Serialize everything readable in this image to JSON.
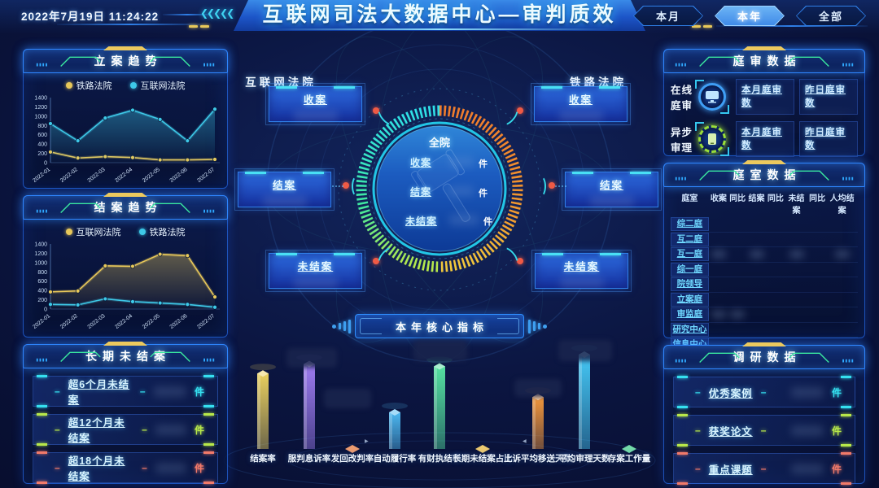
{
  "header": {
    "datetime": "2022年7月19日  11:24:22",
    "title": "互联网司法大数据中心—审判质效",
    "decor_left": "❮❮❮❮❮",
    "decor_right": "❯❯❯❯❯",
    "range_buttons": [
      {
        "label": "本月",
        "active": false
      },
      {
        "label": "本年",
        "active": true
      },
      {
        "label": "全部",
        "active": false
      }
    ]
  },
  "colors": {
    "accent_cyan": "#35e0f0",
    "accent_green": "#b8e84a",
    "accent_red": "#f27a6a",
    "accent_yellow": "#e8c85a",
    "accent_blue": "#2f8fe8",
    "active_button": "#4f9df0",
    "panel_border": "#2364dc",
    "ring_left": "#35e8c0",
    "ring_right": "#f08c30"
  },
  "left": {
    "long_pending": {
      "title": "长期未结案",
      "rows": [
        {
          "label": "超6个月未结案",
          "unit": "件",
          "color": "#35e0f0"
        },
        {
          "label": "超12个月未结案",
          "unit": "件",
          "color": "#b8e84a"
        },
        {
          "label": "超18个月未结案",
          "unit": "件",
          "color": "#f27a6a"
        }
      ]
    }
  },
  "center": {
    "internet_court_label": "互联网法院",
    "railway_court_label": "铁路法院",
    "internet_boxes": [
      {
        "label": "收案"
      },
      {
        "label": "结案"
      },
      {
        "label": "未结案"
      }
    ],
    "railway_boxes": [
      {
        "label": "收案"
      },
      {
        "label": "结案"
      },
      {
        "label": "未结案"
      }
    ],
    "gauge_title": "全院",
    "gauge_rows": [
      {
        "label": "收案",
        "unit": "件"
      },
      {
        "label": "结案",
        "unit": "件"
      },
      {
        "label": "未结案",
        "unit": "件"
      }
    ],
    "core_banner_label": "本年核心指标"
  },
  "right": {
    "hearing": {
      "title": "庭审数据",
      "rows": [
        {
          "label": "在线庭审",
          "icon": "monitor-icon",
          "color": "#3f9ef5",
          "links": [
            "本月庭审数",
            "昨日庭审数"
          ]
        },
        {
          "label": "异步审理",
          "icon": "tablet-icon",
          "color": "#9ade3a",
          "links": [
            "本月庭审数",
            "昨日庭审数"
          ]
        }
      ]
    },
    "dept": {
      "title": "庭室数据",
      "headers": [
        "庭室",
        "收案",
        "同比",
        "结案",
        "同比",
        "未结案",
        "同比",
        "人均结案"
      ],
      "rows": [
        "综二庭",
        "互二庭",
        "互一庭",
        "综一庭",
        "院领导",
        "立案庭",
        "审监庭",
        "研究中心",
        "信息中心"
      ]
    },
    "research": {
      "title": "调研数据",
      "rows": [
        {
          "label": "优秀案例",
          "unit": "件",
          "color": "#35e0f0"
        },
        {
          "label": "获奖论文",
          "unit": "件",
          "color": "#b8e84a"
        },
        {
          "label": "重点课题",
          "unit": "件",
          "color": "#f27a6a"
        }
      ]
    }
  },
  "chart_data": [
    {
      "type": "line",
      "title": "立案趋势",
      "categories": [
        "2022-01",
        "2022-02",
        "2022-03",
        "2022-04",
        "2022-05",
        "2022-06",
        "2022-07"
      ],
      "series": [
        {
          "name": "铁路法院",
          "color": "#e8c85a",
          "area": false,
          "values": [
            230,
            100,
            130,
            110,
            60,
            60,
            70
          ]
        },
        {
          "name": "互联网法院",
          "color": "#3ec9e8",
          "area": true,
          "values": [
            840,
            470,
            960,
            1130,
            930,
            470,
            1150
          ]
        }
      ],
      "ylim": [
        0,
        1400
      ],
      "yticks": [
        0,
        200,
        400,
        600,
        800,
        1000,
        1200,
        1400
      ],
      "grid": false,
      "legend_position": "top"
    },
    {
      "type": "line",
      "title": "结案趋势",
      "categories": [
        "2022-01",
        "2022-02",
        "2022-03",
        "2022-04",
        "2022-05",
        "2022-06",
        "2022-07"
      ],
      "series": [
        {
          "name": "互联网法院",
          "color": "#e8c85a",
          "area": true,
          "values": [
            370,
            390,
            930,
            920,
            1180,
            1150,
            260
          ]
        },
        {
          "name": "铁路法院",
          "color": "#3ec9e8",
          "area": false,
          "values": [
            100,
            90,
            220,
            160,
            130,
            100,
            40
          ]
        }
      ],
      "ylim": [
        0,
        1400
      ],
      "yticks": [
        0,
        200,
        400,
        600,
        800,
        1000,
        1200,
        1400
      ],
      "grid": false,
      "legend_position": "top"
    },
    {
      "type": "bar",
      "title": "本年核心指标",
      "categories": [
        "结案率",
        "服判息诉率",
        "发回改判率",
        "自动履行率",
        "有财执结率",
        "长期未结案占比",
        "上诉平均移送天数",
        "平均审理天数",
        "存案工作量"
      ],
      "values_relative": [
        64,
        72,
        0,
        31,
        70,
        0,
        44,
        80,
        1
      ],
      "value_labels_visible": false,
      "colors": [
        "#e8cf5e",
        "#9d7bf0",
        "#f08040",
        "#4db8f0",
        "#55e0a0",
        "#f0c040",
        "#f0963c",
        "#45c8f5",
        "#48d890"
      ]
    }
  ]
}
